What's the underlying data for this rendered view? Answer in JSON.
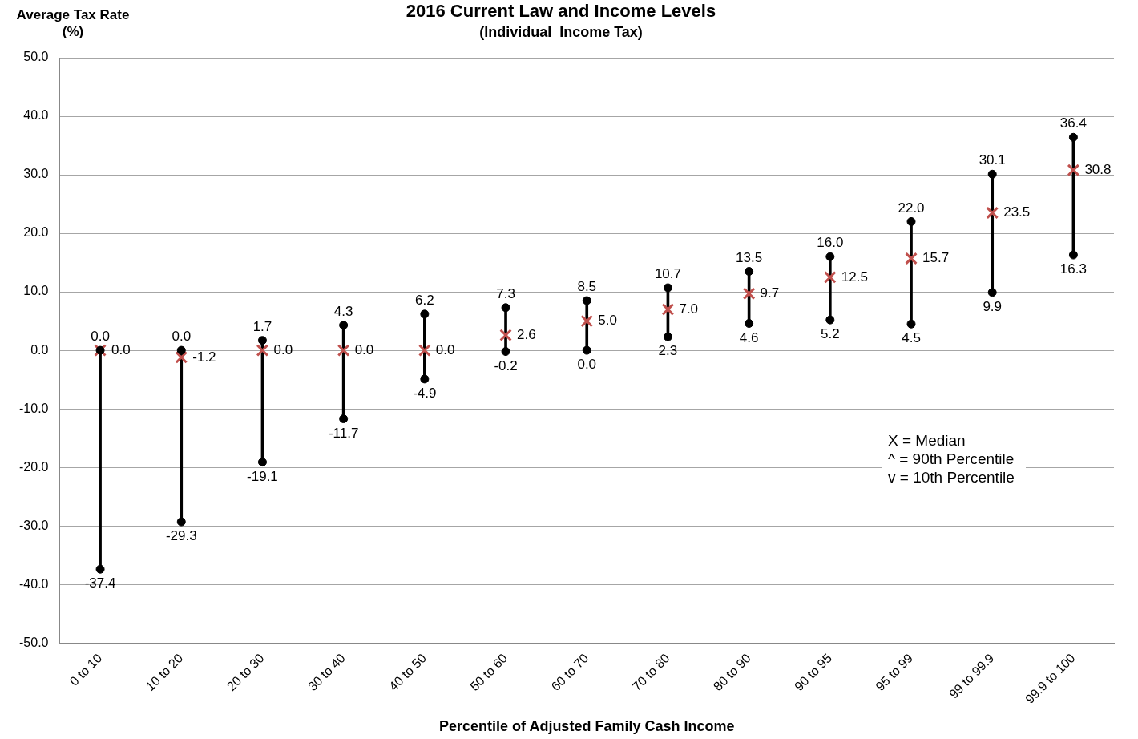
{
  "chart_data": {
    "type": "scatter",
    "title": "2016 Current Law and Income Levels",
    "subtitle": "(Individual  Income Tax)",
    "xlabel": "Percentile of Adjusted Family Cash Income",
    "ylabel": "Average Tax Rate (%)",
    "categories": [
      "0 to 10",
      "10 to 20",
      "20 to 30",
      "30 to 40",
      "40 to 50",
      "50 to 60",
      "60 to 70",
      "70 to 80",
      "80 to 90",
      "90 to 95",
      "95 to 99",
      "99 to 99.9",
      "99.9 to 100"
    ],
    "series": [
      {
        "type": "bar",
        "color": "#000000",
        "base": [
          -37.4,
          -29.3,
          -19.1,
          -11.7,
          -4.9,
          -0.2,
          0.0,
          2.3,
          4.6,
          5.2,
          4.5,
          9.9,
          16.3
        ],
        "values": [
          37.4,
          29.3,
          20.8,
          16.0,
          11.1,
          7.5,
          8.5,
          8.4,
          8.9,
          10.8,
          17.5,
          20.2,
          20.1
        ]
      },
      {
        "marker": "circle",
        "color": "#000000",
        "values": [
          0.0,
          0.0,
          1.7,
          4.3,
          6.2,
          7.3,
          8.5,
          10.7,
          13.5,
          16.0,
          22.0,
          30.1,
          36.4
        ],
        "value_labels": [
          "0.0",
          "0.0",
          "1.7",
          "4.3",
          "6.2",
          "7.3",
          "8.5",
          "10.7",
          "13.5",
          "16.0",
          "22.0",
          "30.1",
          "36.4"
        ]
      },
      {
        "marker": "circle",
        "color": "#000000",
        "values": [
          -37.4,
          -29.3,
          -19.1,
          -11.7,
          -4.9,
          -0.2,
          0.0,
          2.3,
          4.6,
          5.2,
          4.5,
          9.9,
          16.3
        ],
        "value_labels": [
          "-37.4",
          "-29.3",
          "-19.1",
          "-11.7",
          "-4.9",
          "-0.2",
          "0.0",
          "2.3",
          "4.6",
          "5.2",
          "4.5",
          "9.9",
          "16.3"
        ]
      },
      {
        "marker": "cross",
        "color": "#c0504d",
        "values": [
          0.0,
          -1.2,
          0.0,
          0.0,
          0.0,
          2.6,
          5.0,
          7.0,
          9.7,
          12.5,
          15.7,
          23.5,
          30.8
        ],
        "value_labels": [
          "0.0",
          "-1.2",
          "0.0",
          "0.0",
          "0.0",
          "2.6",
          "5.0",
          "7.0",
          "9.7",
          "12.5",
          "15.7",
          "23.5",
          "30.8"
        ]
      }
    ],
    "ylim": [
      -50,
      50
    ],
    "yticks": [
      {
        "value": -50,
        "label": "-50.0"
      },
      {
        "value": -40,
        "label": "-40.0"
      },
      {
        "value": -30,
        "label": "-30.0"
      },
      {
        "value": -20,
        "label": "-20.0"
      },
      {
        "value": -10,
        "label": "-10.0"
      },
      {
        "value": 0,
        "label": "0.0"
      },
      {
        "value": 10,
        "label": "10.0"
      },
      {
        "value": 20,
        "label": "20.0"
      },
      {
        "value": 30,
        "label": "30.0"
      },
      {
        "value": 40,
        "label": "40.0"
      },
      {
        "value": 50,
        "label": "50.0"
      }
    ],
    "grid": "y",
    "legend": false,
    "annotations": [
      "X = Median",
      "^ = 90th Percentile",
      "v = 10th Percentile"
    ]
  }
}
